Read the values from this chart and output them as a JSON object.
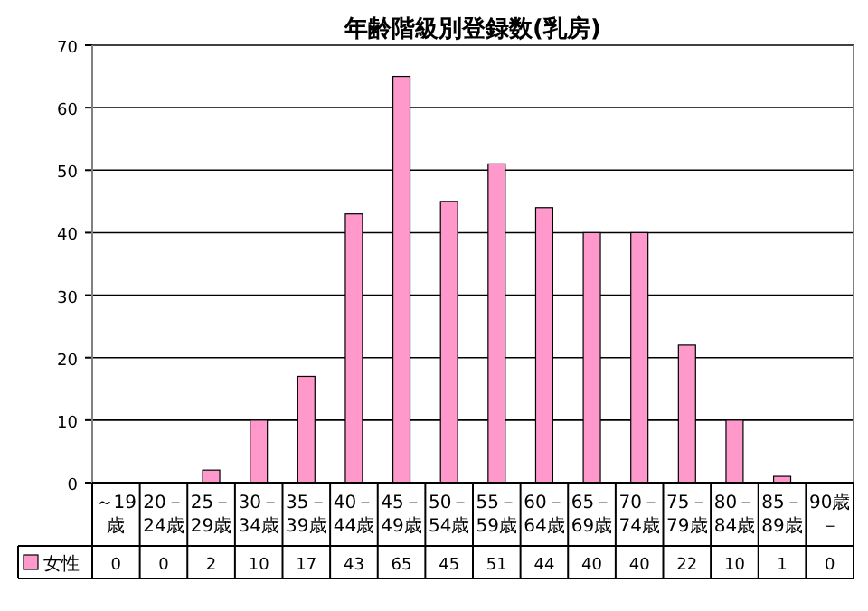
{
  "chart_data": {
    "type": "bar",
    "title": "年齢階級別登録数(乳房)",
    "categories": [
      "～19歳",
      "20－24歳",
      "25－29歳",
      "30－34歳",
      "35－39歳",
      "40－44歳",
      "45－49歳",
      "50－54歳",
      "55－59歳",
      "60－64歳",
      "65－69歳",
      "70－74歳",
      "75－79歳",
      "80－84歳",
      "85－89歳",
      "90歳－"
    ],
    "series": [
      {
        "name": "女性",
        "color": "#ff99cc",
        "values": [
          0,
          0,
          2,
          10,
          17,
          43,
          65,
          45,
          51,
          44,
          40,
          40,
          22,
          10,
          1,
          0
        ]
      }
    ],
    "ylim": [
      0,
      70
    ],
    "yticks": [
      0,
      10,
      20,
      30,
      40,
      50,
      60,
      70
    ],
    "grid": "y",
    "legend": "bottom",
    "data_labels": true
  }
}
